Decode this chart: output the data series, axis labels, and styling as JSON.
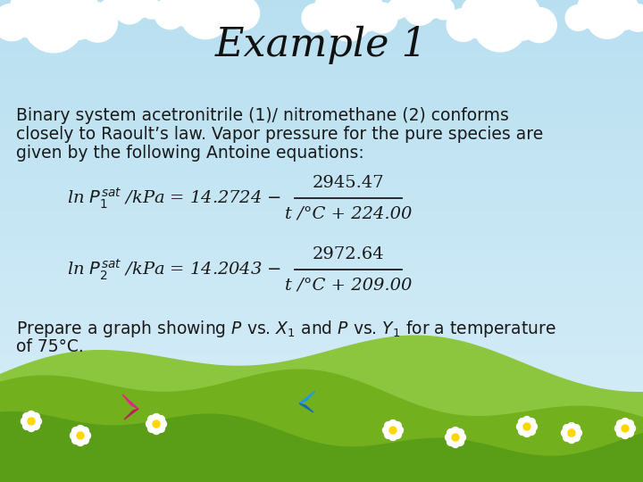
{
  "title": "Example 1",
  "title_fontsize": 32,
  "title_fontstyle": "italic",
  "title_fontfamily": "serif",
  "body_text_line1": "Binary system acetronitrile (1)/ nitromethane (2) conforms",
  "body_text_line2": "closely to Raoult’s law. Vapor pressure for the pure species are",
  "body_text_line3": "given by the following Antoine equations:",
  "body_fontsize": 13.5,
  "eq1_numerator": "2945.47",
  "eq1_denominator": "t /°C + 224.00",
  "eq2_numerator": "2972.64",
  "eq2_denominator": "t /°C + 209.00",
  "footer_line1": "Prepare a graph showing $P$ vs. $X_1$ and $P$ vs. $Y_1$ for a temperature",
  "footer_line2": "of 75°C.",
  "footer_fontsize": 13.5,
  "sky_top": "#b8dff0",
  "sky_bottom": "#d8eef8",
  "grass_color1": "#7ab82e",
  "grass_color2": "#5a9c1a",
  "text_color": "#1a1a1a",
  "eq_fontsize": 14
}
